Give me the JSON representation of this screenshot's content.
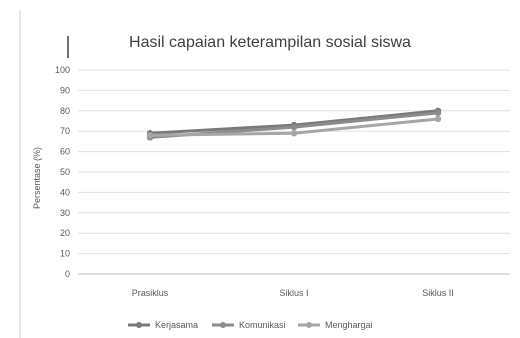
{
  "chart_data": {
    "type": "line",
    "title": "Hasil capaian keterampilan sosial siswa",
    "ylabel": "Persentase (%)",
    "xlabel": "",
    "categories": [
      "Prasiklus",
      "Siklus I",
      "Siklus II"
    ],
    "y_ticks": [
      "0",
      "10",
      "20",
      "30",
      "40",
      "50",
      "60",
      "70",
      "80",
      "90",
      "100"
    ],
    "ylim": [
      0,
      100
    ],
    "grid": true,
    "legend_position": "bottom",
    "series": [
      {
        "name": "Kerjasama",
        "values": [
          69,
          73,
          80
        ],
        "color": "#7a7a7a"
      },
      {
        "name": "Komunikasi",
        "values": [
          67,
          72,
          79
        ],
        "color": "#8c8c8c"
      },
      {
        "name": "Menghargai",
        "values": [
          68,
          69,
          76
        ],
        "color": "#a6a6a6"
      }
    ]
  }
}
